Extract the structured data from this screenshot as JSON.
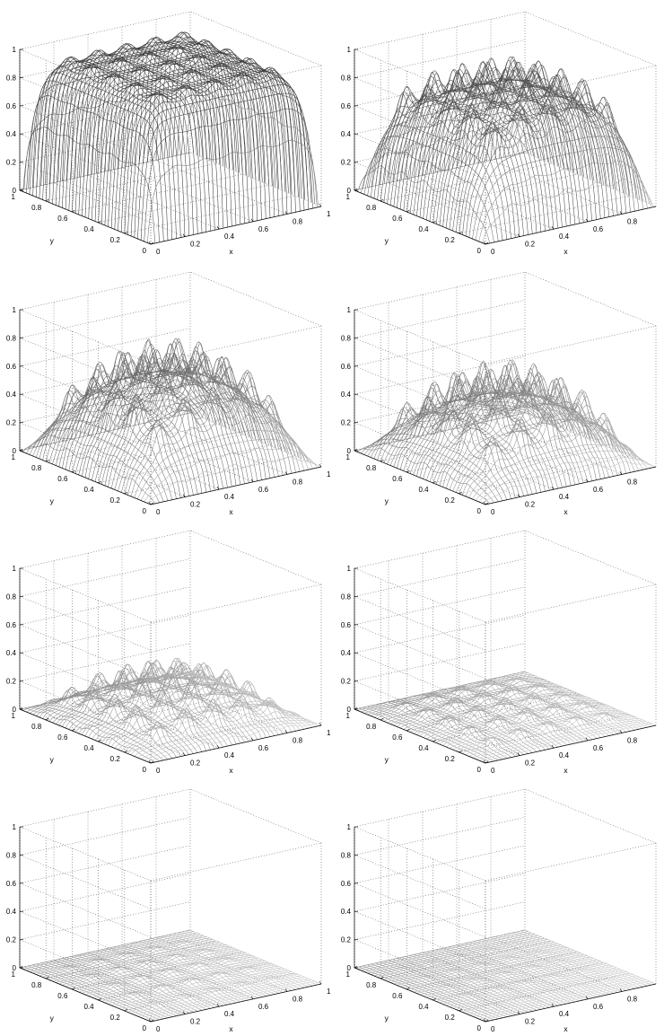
{
  "chart_data": [
    {
      "type": "mesh3d",
      "xlabel": "x",
      "ylabel": "y",
      "zlim": [
        0,
        1
      ],
      "x_ticks": [
        "0",
        "0.2",
        "0.4",
        "0.6",
        "0.8",
        "1"
      ],
      "y_ticks": [
        "0",
        "0.2",
        "0.4",
        "0.6",
        "0.8",
        "1"
      ],
      "z_ticks": [
        "0",
        "0.2",
        "0.4",
        "0.6",
        "0.8",
        "1"
      ],
      "surface": {
        "plateau": 0.92,
        "ripple": 0.06,
        "peaks_per_axis": 6,
        "edge_sharpness": 30
      }
    },
    {
      "type": "mesh3d",
      "xlabel": "x",
      "ylabel": "y",
      "zlim": [
        0,
        1
      ],
      "x_ticks": [
        "0",
        "0.2",
        "0.4",
        "0.6",
        "0.8"
      ],
      "y_ticks": [
        "0",
        "0.2",
        "0.4",
        "0.6",
        "0.8",
        "1"
      ],
      "z_ticks": [
        "0",
        "0.2",
        "0.4",
        "0.6",
        "0.8",
        "1"
      ],
      "surface": {
        "plateau": 0.72,
        "ripple": 0.2,
        "peaks_per_axis": 6,
        "edge_sharpness": 14
      }
    },
    {
      "type": "mesh3d",
      "xlabel": "x",
      "ylabel": "y",
      "zlim": [
        0,
        1
      ],
      "x_ticks": [
        "0",
        "0.2",
        "0.4",
        "0.6",
        "0.8",
        "1"
      ],
      "y_ticks": [
        "0",
        "0.2",
        "0.4",
        "0.6",
        "0.8",
        "1"
      ],
      "z_ticks": [
        "0",
        "0.2",
        "0.4",
        "0.6",
        "0.8",
        "1"
      ],
      "surface": {
        "plateau": 0.6,
        "ripple": 0.28,
        "peaks_per_axis": 6,
        "edge_sharpness": 8
      }
    },
    {
      "type": "mesh3d",
      "xlabel": "x",
      "ylabel": "y",
      "zlim": [
        0,
        1
      ],
      "x_ticks": [
        "0",
        "0.2",
        "0.4",
        "0.6",
        "0.8"
      ],
      "y_ticks": [
        "0",
        "0.2",
        "0.4",
        "0.6",
        "0.8",
        "1"
      ],
      "z_ticks": [
        "0",
        "0.2",
        "0.4",
        "0.6",
        "0.8",
        "1"
      ],
      "surface": {
        "plateau": 0.45,
        "ripple": 0.3,
        "peaks_per_axis": 6,
        "edge_sharpness": 7
      }
    },
    {
      "type": "mesh3d",
      "xlabel": "x",
      "ylabel": "y",
      "zlim": [
        0,
        1
      ],
      "x_ticks": [
        "0",
        "0.2",
        "0.4",
        "0.6",
        "0.8",
        "1"
      ],
      "y_ticks": [
        "0",
        "0.2",
        "0.4",
        "0.6",
        "0.8",
        "1"
      ],
      "z_ticks": [
        "0",
        "0.2",
        "0.4",
        "0.6",
        "0.8",
        "1"
      ],
      "surface": {
        "plateau": 0.2,
        "ripple": 0.24,
        "peaks_per_axis": 6,
        "edge_sharpness": 6
      }
    },
    {
      "type": "mesh3d",
      "xlabel": "x",
      "ylabel": "y",
      "zlim": [
        0,
        1
      ],
      "x_ticks": [
        "0",
        "0.2",
        "0.4",
        "0.6",
        "0.8"
      ],
      "y_ticks": [
        "0",
        "0.2",
        "0.4",
        "0.6",
        "0.8",
        "1"
      ],
      "z_ticks": [
        "0",
        "0.2",
        "0.4",
        "0.6",
        "0.8",
        "1"
      ],
      "surface": {
        "plateau": 0.07,
        "ripple": 0.1,
        "peaks_per_axis": 6,
        "edge_sharpness": 6
      }
    },
    {
      "type": "mesh3d",
      "xlabel": "x",
      "ylabel": "y",
      "zlim": [
        0,
        1
      ],
      "x_ticks": [
        "0",
        "0.2",
        "0.4",
        "0.6",
        "0.8",
        "1"
      ],
      "y_ticks": [
        "0",
        "0.2",
        "0.4",
        "0.6",
        "0.8",
        "1"
      ],
      "z_ticks": [
        "0",
        "0.2",
        "0.4",
        "0.6",
        "0.8",
        "1"
      ],
      "surface": {
        "plateau": 0.02,
        "ripple": 0.035,
        "peaks_per_axis": 6,
        "edge_sharpness": 6
      }
    },
    {
      "type": "mesh3d",
      "xlabel": "x",
      "ylabel": "y",
      "zlim": [
        0,
        1
      ],
      "x_ticks": [
        "0",
        "0.2",
        "0.4",
        "0.6",
        "0.8"
      ],
      "y_ticks": [
        "0",
        "0.2",
        "0.4",
        "0.6",
        "0.8",
        "1"
      ],
      "z_ticks": [
        "0",
        "0.2",
        "0.4",
        "0.6",
        "0.8",
        "1"
      ],
      "surface": {
        "plateau": 0.008,
        "ripple": 0.015,
        "peaks_per_axis": 6,
        "edge_sharpness": 6
      }
    }
  ]
}
